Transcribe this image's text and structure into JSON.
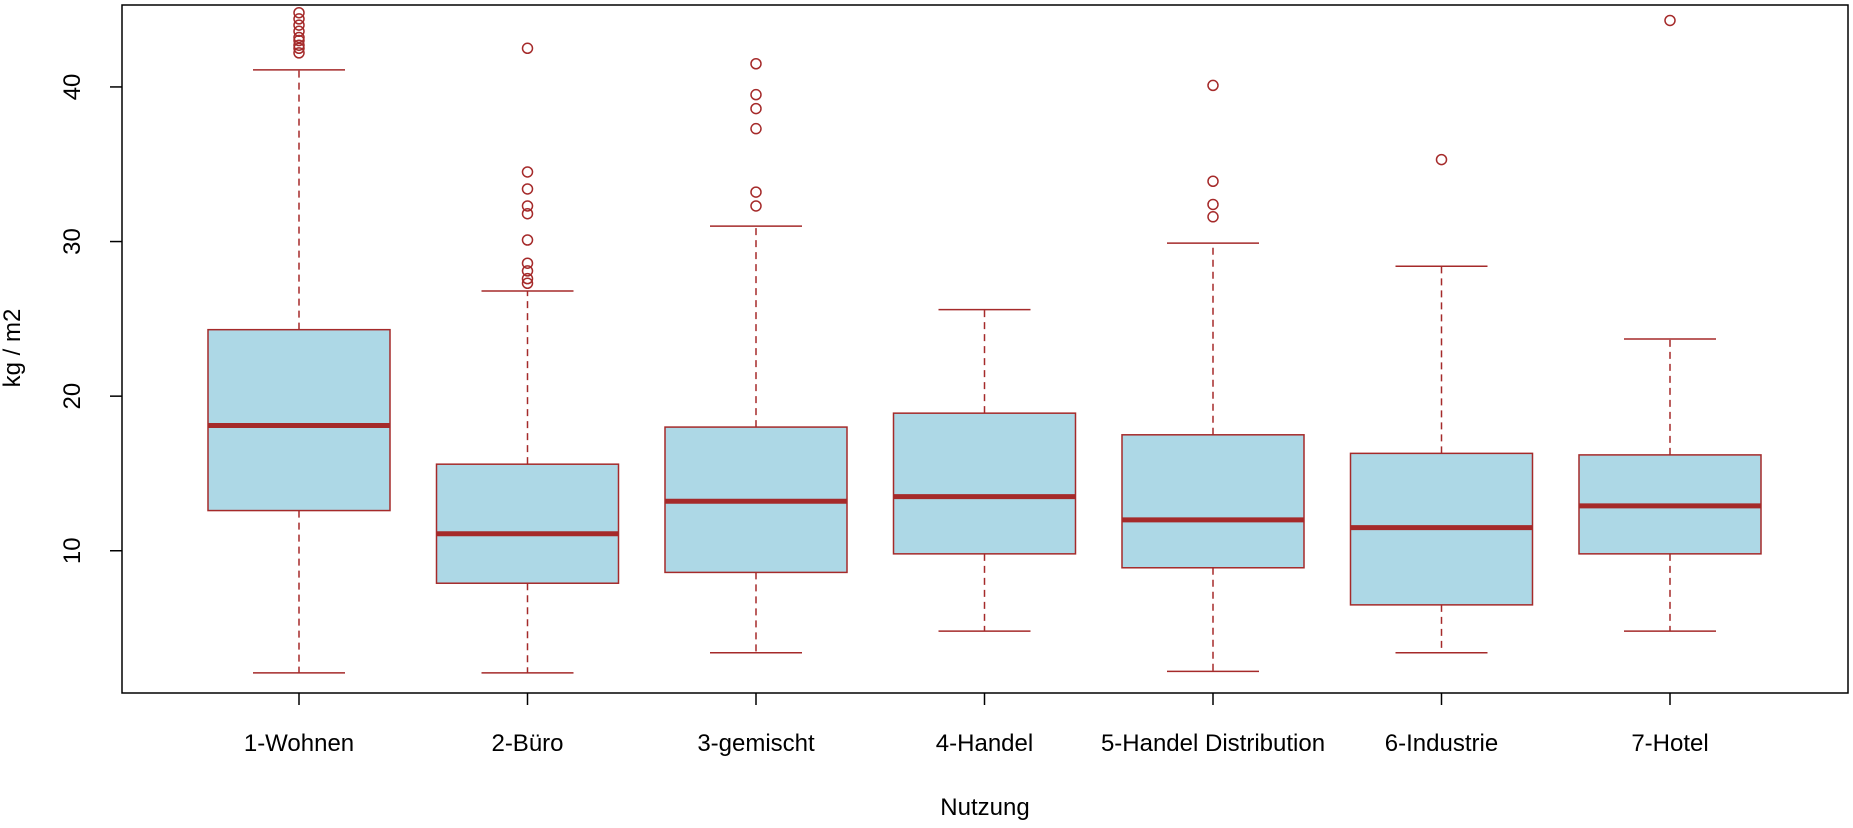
{
  "chart_data": {
    "type": "boxplot",
    "title": "",
    "xlabel": "Nutzung",
    "ylabel": "kg / m2",
    "ylim": [
      0.8,
      45.3
    ],
    "yticks": [
      10,
      20,
      30,
      40
    ],
    "grid": false,
    "legend": "none",
    "colors": {
      "box_fill": "#add8e6",
      "stroke": "#a52a2a",
      "axis": "#000000"
    },
    "categories": [
      "1-Wohnen",
      "2-Büro",
      "3-gemischt",
      "4-Handel",
      "5-Handel Distribution",
      "6-Industrie",
      "7-Hotel"
    ],
    "boxes": [
      {
        "whisker_low": 2.1,
        "q1": 12.6,
        "median": 18.1,
        "q3": 24.3,
        "whisker_high": 41.1,
        "outliers": [
          42.2,
          42.5,
          42.7,
          43.0,
          43.2,
          43.6,
          44.0,
          44.4,
          44.8
        ]
      },
      {
        "whisker_low": 2.1,
        "q1": 7.9,
        "median": 11.1,
        "q3": 15.6,
        "whisker_high": 26.8,
        "outliers": [
          27.3,
          27.6,
          28.1,
          28.6,
          30.1,
          31.8,
          32.3,
          33.4,
          34.5,
          42.5
        ]
      },
      {
        "whisker_low": 3.4,
        "q1": 8.6,
        "median": 13.2,
        "q3": 18.0,
        "whisker_high": 31.0,
        "outliers": [
          32.3,
          33.2,
          37.3,
          38.6,
          39.5,
          41.5
        ]
      },
      {
        "whisker_low": 4.8,
        "q1": 9.8,
        "median": 13.5,
        "q3": 18.9,
        "whisker_high": 25.6,
        "outliers": []
      },
      {
        "whisker_low": 2.2,
        "q1": 8.9,
        "median": 12.0,
        "q3": 17.5,
        "whisker_high": 29.9,
        "outliers": [
          31.6,
          32.4,
          33.9,
          40.1
        ]
      },
      {
        "whisker_low": 3.4,
        "q1": 6.5,
        "median": 11.5,
        "q3": 16.3,
        "whisker_high": 28.4,
        "outliers": [
          35.3
        ]
      },
      {
        "whisker_low": 4.8,
        "q1": 9.8,
        "median": 12.9,
        "q3": 16.2,
        "whisker_high": 23.7,
        "outliers": [
          44.3
        ]
      }
    ]
  }
}
